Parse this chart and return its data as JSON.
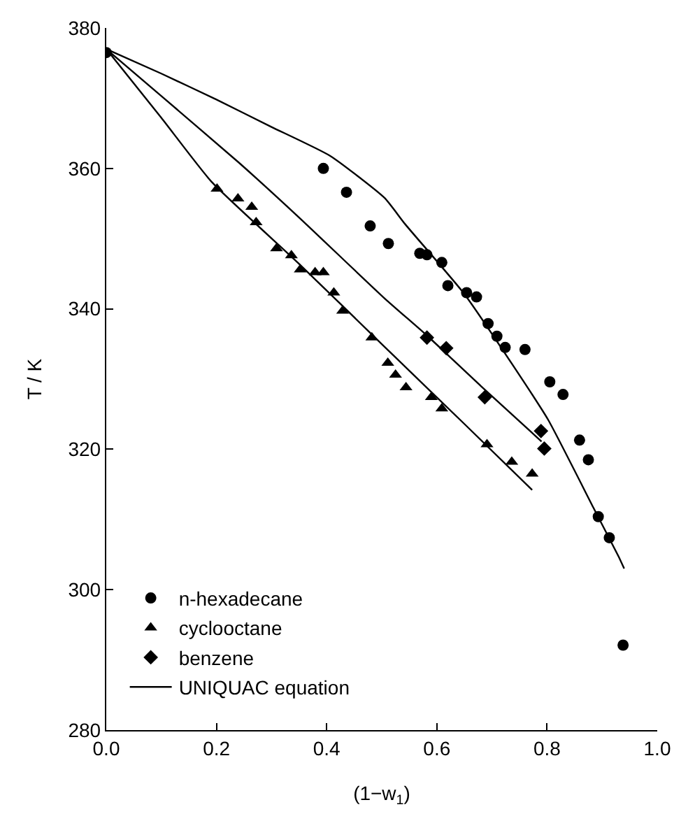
{
  "chart_data": {
    "type": "scatter",
    "xlabel": "(1−w$_{1}$)",
    "ylabel": "T / K",
    "xlim": [
      0,
      1
    ],
    "xticks": [
      {
        "value": 0,
        "label": "0.0"
      },
      0.2,
      0.4,
      0.6,
      0.8,
      {
        "value": 1,
        "label": "1.0"
      }
    ],
    "ylim": [
      280,
      380
    ],
    "yticks": [
      280,
      300,
      320,
      340,
      360,
      380
    ],
    "legend": "bottom left",
    "series": [
      {
        "name": "n-hexadecane",
        "marker": "circle",
        "color": "#000000",
        "x": [
          0,
          0.394,
          0.436,
          0.479,
          0.512,
          0.569,
          0.582,
          0.609,
          0.62,
          0.654,
          0.672,
          0.693,
          0.709,
          0.724,
          0.76,
          0.805,
          0.829,
          0.859,
          0.875,
          0.893,
          0.913,
          0.938
        ],
        "values": [
          376.5,
          360,
          356.6,
          351.8,
          349.3,
          347.9,
          347.7,
          346.6,
          343.3,
          342.3,
          341.7,
          337.9,
          336.1,
          334.5,
          334.2,
          329.6,
          327.8,
          321.3,
          318.5,
          310.4,
          307.4,
          292.1
        ]
      },
      {
        "name": "cyclooctane",
        "marker": "triangle",
        "color": "#000000",
        "x": [
          0.201,
          0.239,
          0.264,
          0.272,
          0.309,
          0.336,
          0.352,
          0.379,
          0.394,
          0.413,
          0.429,
          0.482,
          0.511,
          0.525,
          0.544,
          0.59,
          0.609,
          0.691,
          0.736,
          0.773
        ],
        "values": [
          357.1,
          355.7,
          354.5,
          352.3,
          348.6,
          347.6,
          345.6,
          345.2,
          345.2,
          342.3,
          339.7,
          335.9,
          332.3,
          330.6,
          328.8,
          327.4,
          325.8,
          320.7,
          318.2,
          316.5
        ]
      },
      {
        "name": "benzene",
        "marker": "diamond",
        "color": "#000000",
        "x": [
          0.582,
          0.617,
          0.687,
          0.789,
          0.795
        ],
        "values": [
          335.9,
          334.4,
          327.4,
          322.6,
          320.1
        ]
      },
      {
        "name": "UNIQUAC equation",
        "type": "line",
        "marker": "none",
        "line_style": "solid",
        "color": "#000000",
        "x": [
          0,
          0.1,
          0.2,
          0.3,
          0.406,
          0.505,
          0.542,
          0.649,
          0.736,
          0.802,
          0.884,
          0.93,
          0.94
        ],
        "values": [
          377,
          373.5,
          369.8,
          365.9,
          361.8,
          355.8,
          352.1,
          342.2,
          332.2,
          324.2,
          311.7,
          304.7,
          303
        ]
      },
      {
        "type": "line",
        "marker": "none",
        "line_style": "solid",
        "color": "#000000",
        "x": [
          0,
          0.1,
          0.241,
          0.35,
          0.505,
          0.582,
          0.68,
          0.79
        ],
        "values": [
          377,
          370.3,
          360.8,
          353,
          341.5,
          336.2,
          329,
          321.1
        ]
      },
      {
        "type": "line",
        "marker": "none",
        "line_style": "solid",
        "color": "#000000",
        "x": [
          0,
          0.1,
          0.191,
          0.35,
          0.505,
          0.65,
          0.773
        ],
        "values": [
          377,
          367.2,
          358.1,
          346.4,
          334.6,
          323.6,
          314.2
        ]
      }
    ]
  }
}
